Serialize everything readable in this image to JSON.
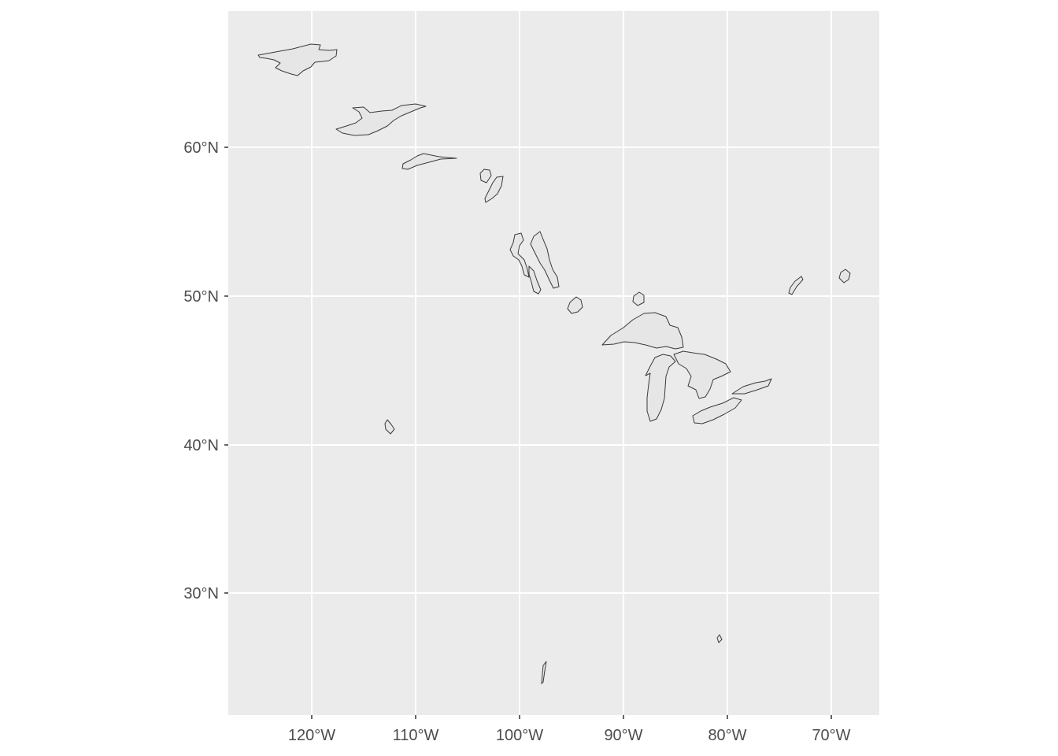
{
  "map": {
    "type": "geographic outline map",
    "panel_background": "#ebebeb",
    "grid_color": "#ffffff",
    "lake_fill": "#e6e6e6",
    "lake_stroke": "#3a3a3a",
    "x_axis": {
      "ticks": [
        {
          "value": -120,
          "label": "120°W"
        },
        {
          "value": -110,
          "label": "110°W"
        },
        {
          "value": -100,
          "label": "100°W"
        },
        {
          "value": -90,
          "label": "90°W"
        },
        {
          "value": -80,
          "label": "80°W"
        },
        {
          "value": -70,
          "label": "70°W"
        }
      ]
    },
    "y_axis": {
      "ticks": [
        {
          "value": 30,
          "label": "30°N"
        },
        {
          "value": 40,
          "label": "40°N"
        },
        {
          "value": 50,
          "label": "50°N"
        },
        {
          "value": 60,
          "label": "60°N"
        }
      ]
    }
  }
}
